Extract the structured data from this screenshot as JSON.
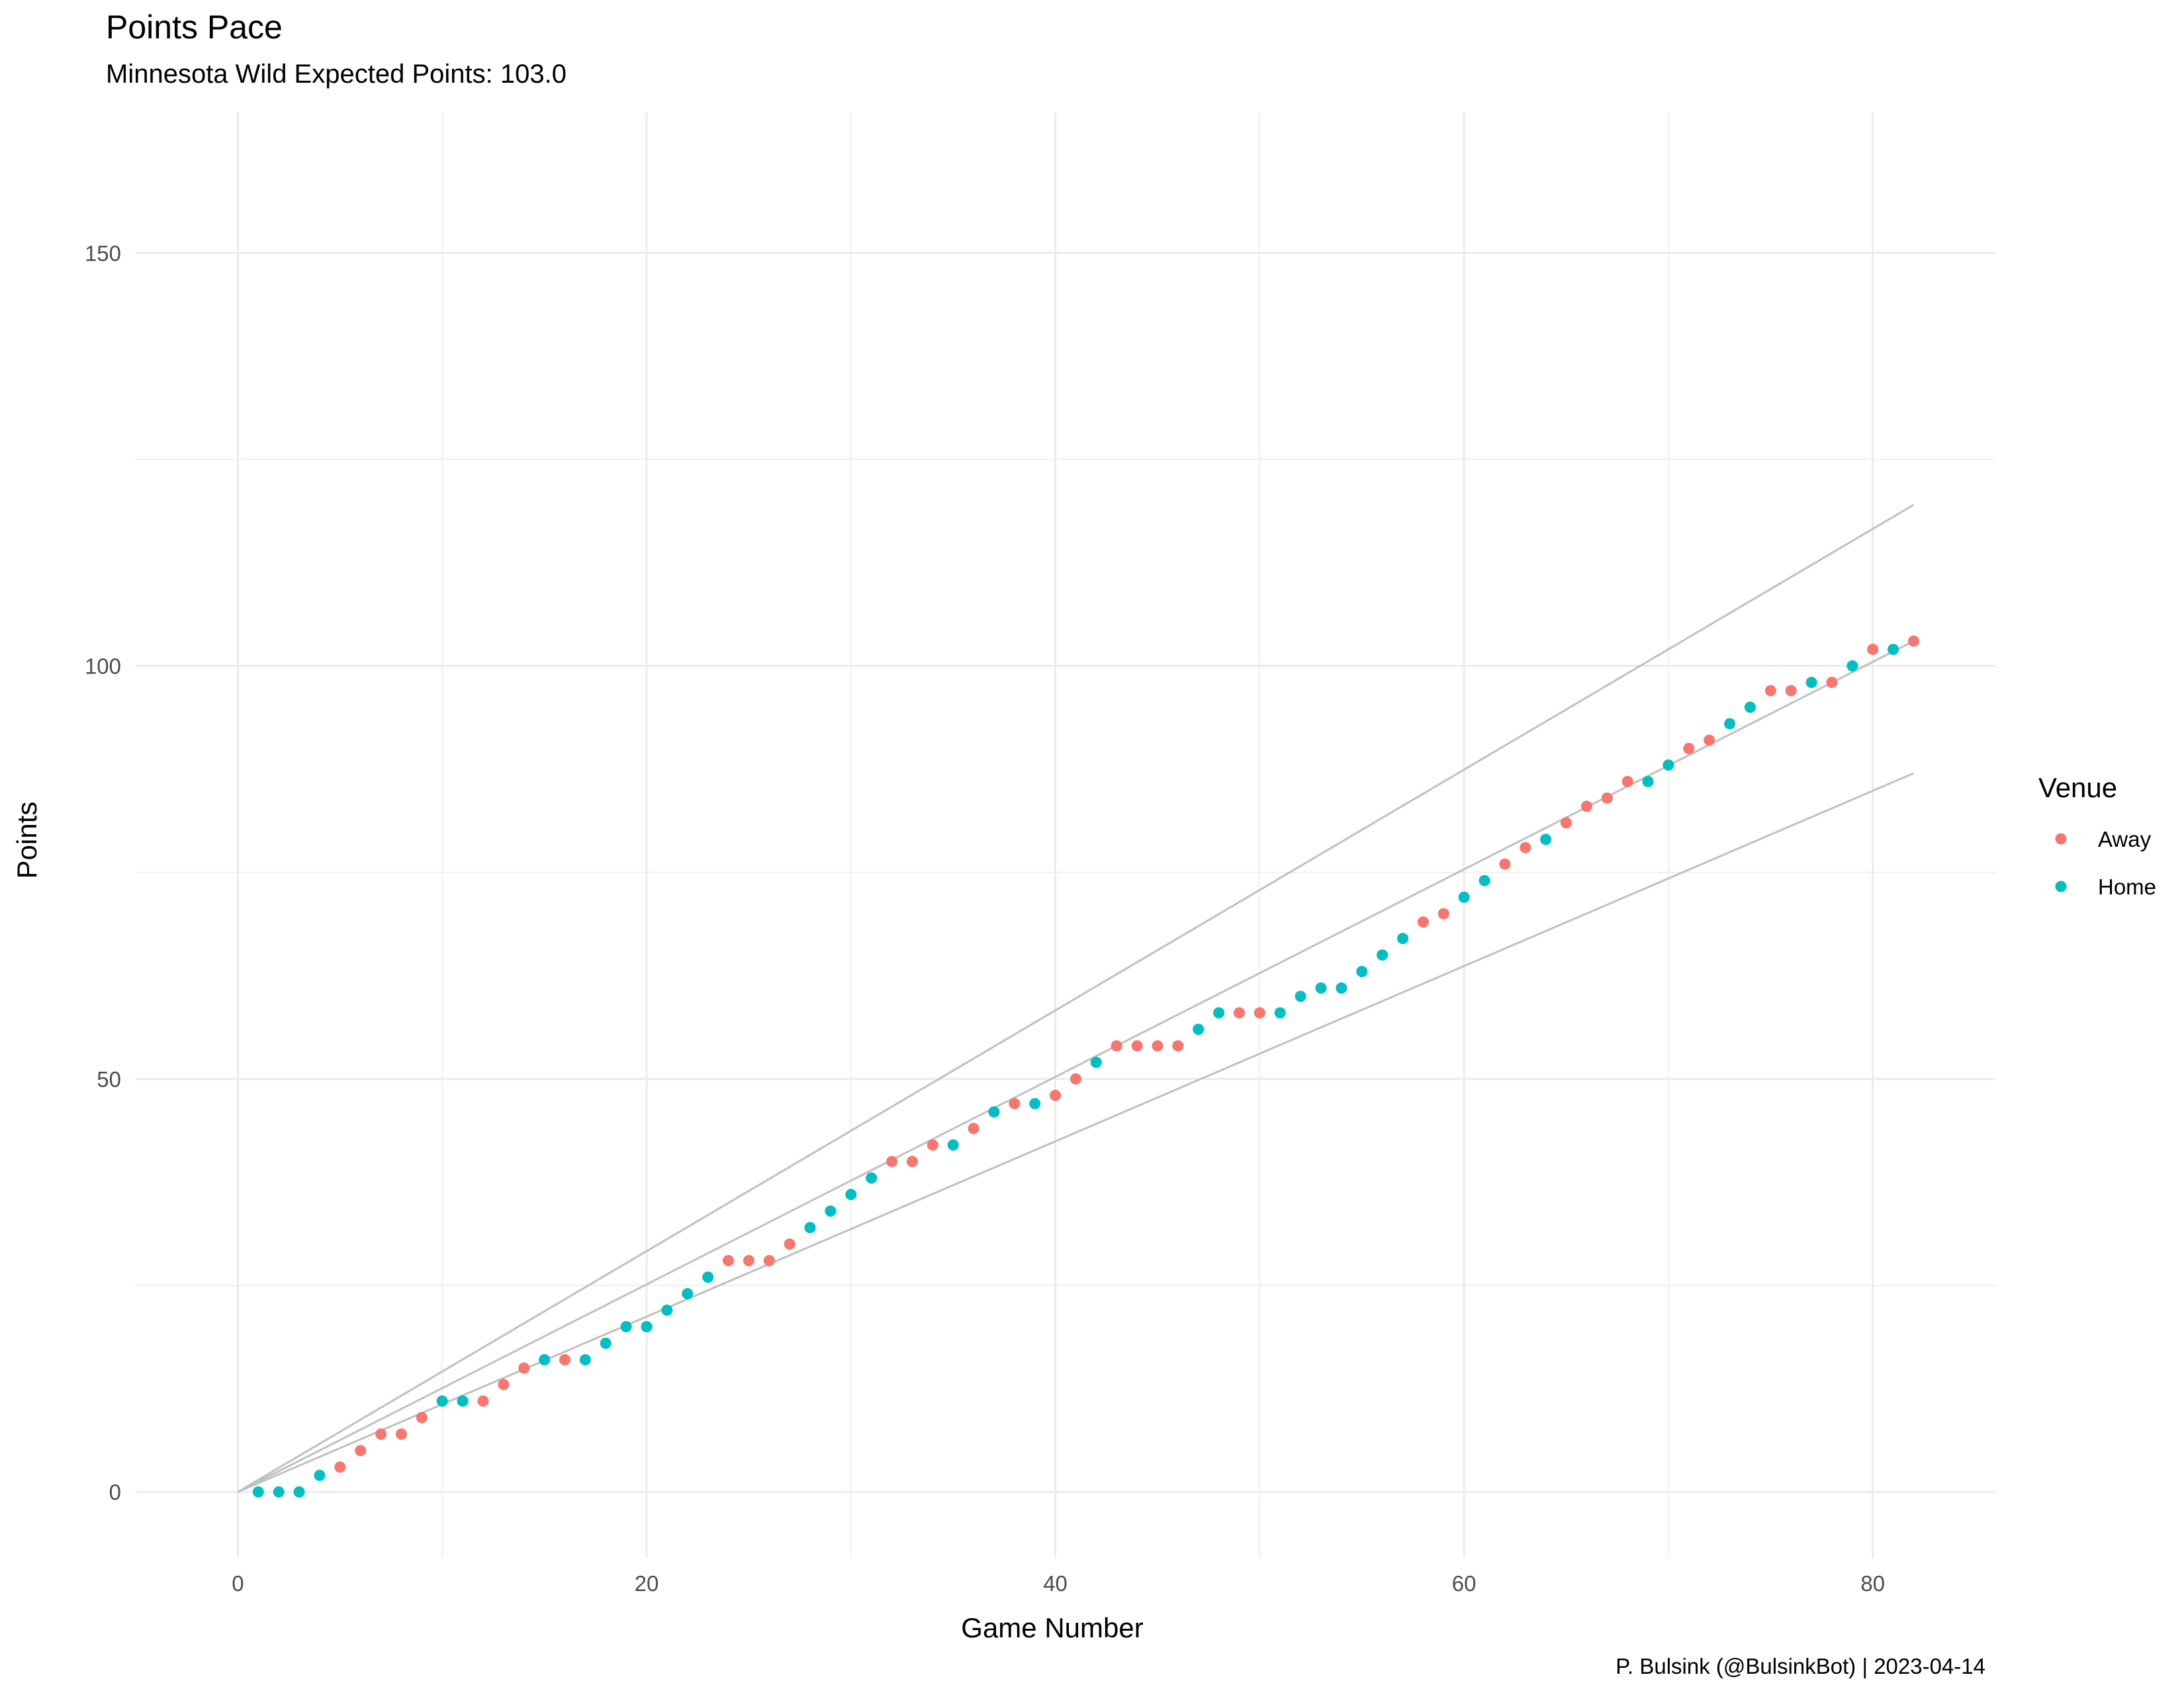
{
  "chart_data": {
    "type": "scatter",
    "title": "Points Pace",
    "subtitle": "Minnesota Wild Expected Points: 103.0",
    "caption": "P. Bulsink (@BulsinkBot) | 2023-04-14",
    "xlabel": "Game Number",
    "ylabel": "Points",
    "xlim": [
      -5,
      86
    ],
    "ylim": [
      -8,
      167
    ],
    "x_ticks": [
      0,
      20,
      40,
      60,
      80
    ],
    "y_ticks": [
      0,
      50,
      100,
      150
    ],
    "grid": true,
    "legend": {
      "title": "Venue",
      "position": "right"
    },
    "colors": {
      "Away": "#F8766D",
      "Home": "#00BFC4",
      "reference": "#c0c0c0",
      "grid": "#ebebeb"
    },
    "reference_lines": [
      {
        "x": [
          0,
          82
        ],
        "y": [
          0,
          119.5
        ]
      },
      {
        "x": [
          0,
          82
        ],
        "y": [
          0,
          103.0
        ]
      },
      {
        "x": [
          0,
          82
        ],
        "y": [
          0,
          87
        ]
      }
    ],
    "series": [
      {
        "name": "Away",
        "x": [
          5,
          6,
          7,
          8,
          9,
          12,
          13,
          14,
          16,
          24,
          25,
          26,
          27,
          32,
          33,
          34,
          36,
          38,
          40,
          41,
          43,
          44,
          45,
          46,
          49,
          50,
          58,
          59,
          62,
          63,
          65,
          66,
          67,
          68,
          71,
          72,
          75,
          76,
          78,
          80,
          82
        ],
        "y": [
          3,
          5,
          7,
          7,
          9,
          11,
          13,
          15,
          16,
          28,
          28,
          28,
          30,
          40,
          40,
          42,
          44,
          47,
          48,
          50,
          54,
          54,
          54,
          54,
          58,
          58,
          69,
          70,
          76,
          78,
          81,
          83,
          84,
          86,
          90,
          91,
          97,
          97,
          98,
          102,
          103
        ]
      },
      {
        "name": "Home",
        "x": [
          1,
          2,
          3,
          4,
          10,
          11,
          15,
          17,
          18,
          19,
          20,
          21,
          22,
          23,
          28,
          29,
          30,
          31,
          35,
          37,
          39,
          42,
          47,
          48,
          51,
          52,
          53,
          54,
          55,
          56,
          57,
          60,
          61,
          64,
          69,
          70,
          73,
          74,
          77,
          79,
          81
        ],
        "y": [
          0,
          0,
          0,
          2,
          11,
          11,
          16,
          16,
          18,
          20,
          20,
          22,
          24,
          26,
          32,
          34,
          36,
          38,
          42,
          46,
          47,
          52,
          56,
          58,
          58,
          60,
          61,
          61,
          63,
          65,
          67,
          72,
          74,
          79,
          86,
          88,
          93,
          95,
          98,
          100,
          102
        ]
      }
    ]
  }
}
